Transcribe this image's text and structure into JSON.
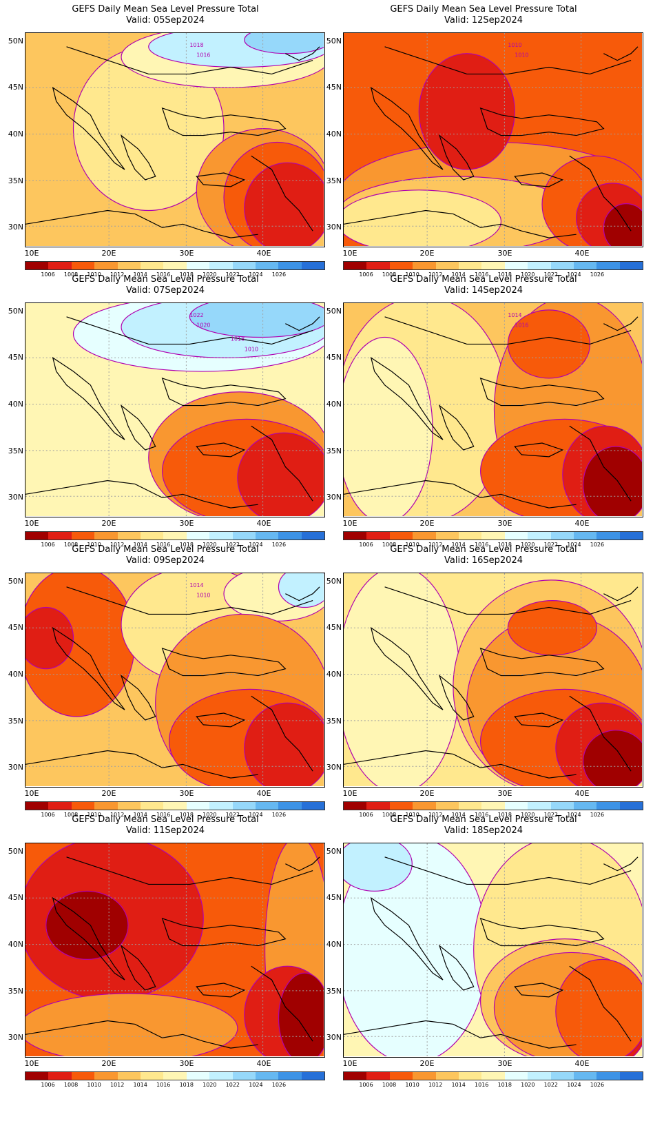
{
  "figure_title": "GEFS Daily Mean Sea Level Pressure Total",
  "valid_prefix": "Valid:",
  "panels": [
    {
      "id": "p1",
      "title": "GEFS Daily Mean Sea Level Pressure Total",
      "valid": "Valid: 05Sep2024",
      "contour_labels": [
        "1018",
        "1016"
      ]
    },
    {
      "id": "p2",
      "title": "GEFS Daily Mean Sea Level Pressure Total",
      "valid": "Valid: 12Sep2024",
      "contour_labels": [
        "1010",
        "1010"
      ]
    },
    {
      "id": "p3",
      "title": "GEFS Daily Mean Sea Level Pressure Total",
      "valid": "Valid: 07Sep2024",
      "contour_labels": [
        "1022",
        "1020",
        "1018",
        "1010"
      ]
    },
    {
      "id": "p4",
      "title": "GEFS Daily Mean Sea Level Pressure Total",
      "valid": "Valid: 14Sep2024",
      "contour_labels": [
        "1014",
        "1016"
      ]
    },
    {
      "id": "p5",
      "title": "GEFS Daily Mean Sea Level Pressure Total",
      "valid": "Valid: 09Sep2024",
      "contour_labels": [
        "1014",
        "1010"
      ]
    },
    {
      "id": "p6",
      "title": "GEFS Daily Mean Sea Level Pressure Total",
      "valid": "Valid: 16Sep2024",
      "contour_labels": []
    },
    {
      "id": "p7",
      "title": "GEFS Daily Mean Sea Level Pressure Total",
      "valid": "Valid: 11Sep2024",
      "contour_labels": []
    },
    {
      "id": "p8",
      "title": "GEFS Daily Mean Sea Level Pressure Total",
      "valid": "Valid: 18Sep2024",
      "contour_labels": []
    }
  ],
  "axes": {
    "lat_labels": [
      "50N",
      "45N",
      "40N",
      "35N",
      "30N"
    ],
    "lon_labels": [
      "10E",
      "20E",
      "30E",
      "40E"
    ]
  },
  "colorbar": {
    "labels": [
      "1006",
      "1008",
      "1010",
      "1012",
      "1014",
      "1016",
      "1018",
      "1020",
      "1022",
      "1024",
      "1026"
    ],
    "colors": [
      "#a00000",
      "#e01e14",
      "#f75a0a",
      "#f99730",
      "#fdc65e",
      "#ffe88e",
      "#fff6b4",
      "#e6ffff",
      "#c2f1ff",
      "#96d8fa",
      "#66b8f1",
      "#3d93e6",
      "#2670d8"
    ]
  },
  "legend_colors": {
    "background": "#ffffff",
    "contour": "#b000b0",
    "coast": "#000000",
    "grid": "#a0a0a0"
  }
}
